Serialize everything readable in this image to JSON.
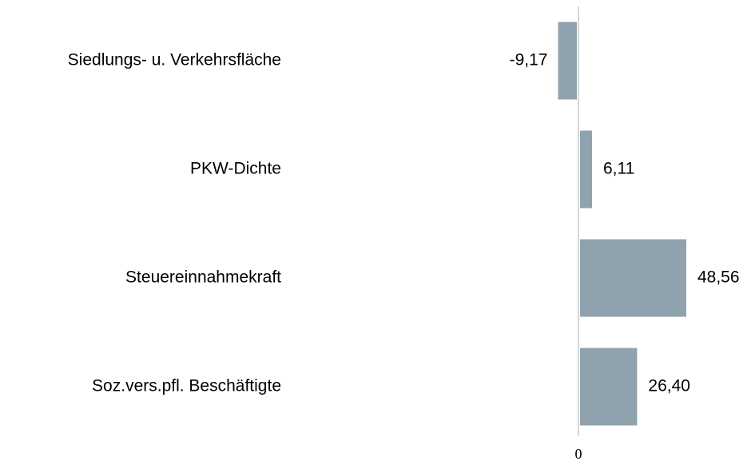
{
  "chart_data": {
    "type": "hbar",
    "categories": [
      "Siedlungs- u. Verkehrsfläche",
      "PKW-Dichte",
      "Steuereinnahmekraft",
      "Soz.vers.pfl. Beschäftigte"
    ],
    "values": [
      -9.17,
      6.11,
      48.56,
      26.4
    ],
    "value_labels": [
      "-9,17",
      "6,11",
      "48,56",
      "26,40"
    ],
    "color": "#8fa2ad",
    "xlim": [
      -10,
      70
    ],
    "xticks": [
      0
    ]
  }
}
